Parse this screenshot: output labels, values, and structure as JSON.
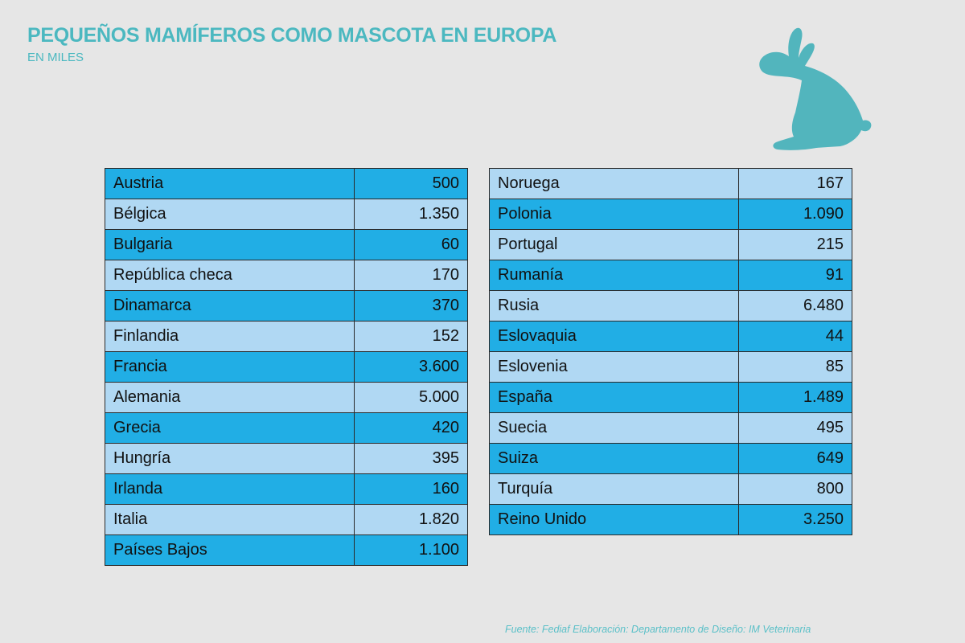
{
  "title": "PEQUEÑOS MAMÍFEROS COMO MASCOTA EN EUROPA",
  "subtitle": "EN MILES",
  "source": "Fuente: Fediaf  Elaboración: Departamento de Diseño: IM Veterinaria",
  "colors": {
    "title": "#4bb8c0",
    "row_dark": "#21aee5",
    "row_light": "#b0d8f3",
    "background": "#e6e6e6",
    "icon": "#52b5bd"
  },
  "icon": "rabbit-icon",
  "chart_data": {
    "type": "table",
    "title": "PEQUEÑOS MAMÍFEROS COMO MASCOTA EN EUROPA",
    "unit": "EN MILES",
    "tables": [
      {
        "rows": [
          {
            "country": "Austria",
            "value": "500"
          },
          {
            "country": "Bélgica",
            "value": "1.350"
          },
          {
            "country": "Bulgaria",
            "value": "60"
          },
          {
            "country": "República checa",
            "value": "170"
          },
          {
            "country": "Dinamarca",
            "value": "370"
          },
          {
            "country": "Finlandia",
            "value": "152"
          },
          {
            "country": "Francia",
            "value": "3.600"
          },
          {
            "country": "Alemania",
            "value": "5.000"
          },
          {
            "country": "Grecia",
            "value": "420"
          },
          {
            "country": "Hungría",
            "value": "395"
          },
          {
            "country": "Irlanda",
            "value": "160"
          },
          {
            "country": "Italia",
            "value": "1.820"
          },
          {
            "country": "Países Bajos",
            "value": "1.100"
          }
        ]
      },
      {
        "rows": [
          {
            "country": "Noruega",
            "value": "167"
          },
          {
            "country": "Polonia",
            "value": "1.090"
          },
          {
            "country": "Portugal",
            "value": "215"
          },
          {
            "country": "Rumanía",
            "value": "91"
          },
          {
            "country": "Rusia",
            "value": "6.480"
          },
          {
            "country": "Eslovaquia",
            "value": "44"
          },
          {
            "country": "Eslovenia",
            "value": "85"
          },
          {
            "country": "España",
            "value": "1.489"
          },
          {
            "country": "Suecia",
            "value": "495"
          },
          {
            "country": "Suiza",
            "value": "649"
          },
          {
            "country": "Turquía",
            "value": "800"
          },
          {
            "country": "Reino Unido",
            "value": "3.250"
          }
        ]
      }
    ]
  }
}
